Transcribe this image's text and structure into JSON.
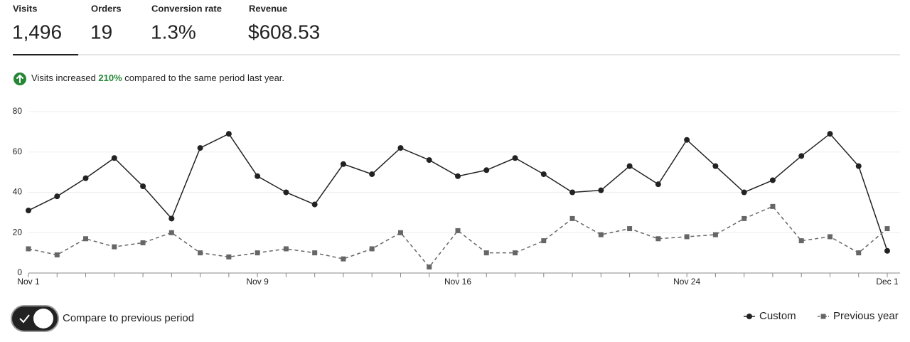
{
  "stats": {
    "active": 0,
    "items": [
      {
        "label": "Visits",
        "value": "1,496"
      },
      {
        "label": "Orders",
        "value": "19"
      },
      {
        "label": "Conversion rate",
        "value": "1.3%"
      },
      {
        "label": "Revenue",
        "value": "$608.53"
      }
    ]
  },
  "notice": {
    "before": "Visits increased ",
    "highlight": "210%",
    "after": " compared to the same period last year.",
    "highlight_color": "#258635"
  },
  "toggle": {
    "label": "Compare to previous period",
    "on": true
  },
  "chart_data": {
    "type": "line",
    "categories": [
      "Nov 1",
      null,
      null,
      null,
      null,
      null,
      null,
      null,
      "Nov 9",
      null,
      null,
      null,
      null,
      null,
      null,
      "Nov 16",
      null,
      null,
      null,
      null,
      null,
      null,
      null,
      "Nov 24",
      null,
      null,
      null,
      null,
      null,
      null,
      "Dec 1"
    ],
    "series": [
      {
        "name": "Custom",
        "color": "#222222",
        "marker": "circle",
        "dashed": false,
        "values": [
          31,
          38,
          47,
          57,
          43,
          27,
          62,
          69,
          48,
          40,
          34,
          54,
          49,
          62,
          56,
          48,
          51,
          57,
          49,
          40,
          41,
          53,
          44,
          66,
          53,
          40,
          46,
          58,
          69,
          53,
          11
        ]
      },
      {
        "name": "Previous year",
        "color": "#666666",
        "marker": "square",
        "dashed": true,
        "values": [
          12,
          9,
          17,
          13,
          15,
          20,
          10,
          8,
          10,
          12,
          10,
          7,
          12,
          20,
          3,
          21,
          10,
          10,
          16,
          27,
          19,
          22,
          17,
          18,
          19,
          27,
          33,
          16,
          18,
          10,
          22
        ]
      }
    ],
    "ylim": [
      0,
      80
    ],
    "yticks": [
      0,
      20,
      40,
      60,
      80
    ],
    "grid": true,
    "legend": "bottom-right"
  }
}
